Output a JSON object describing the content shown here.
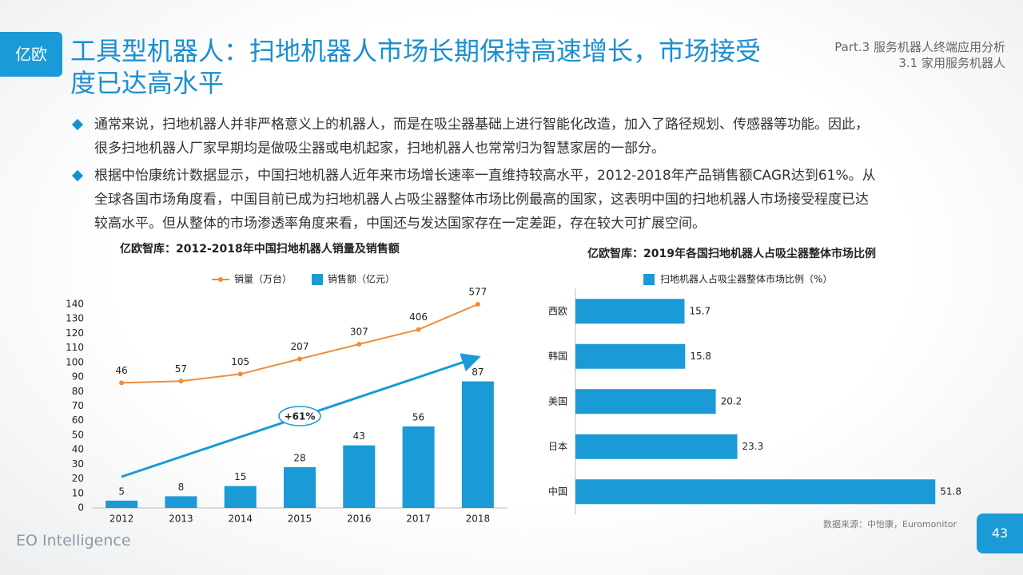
{
  "header": {
    "logo": "亿欧",
    "title": "工具型机器人：扫地机器人市场长期保持高速增长，市场接受度已达高水平",
    "part": "Part.3 服务机器人终端应用分析",
    "section": "3.1 家用服务机器人"
  },
  "bullets": [
    [
      "通常来说，扫地机器人并非严格意义上的机器人，而是在吸尘器基础上进行智能化改造，加入了路径规划、传感器等功能。因此，",
      "很多扫地机器人厂家早期均是做吸尘器或电机起家，扫地机器人也常常归为智慧家居的一部分。"
    ],
    [
      "根据中怡康统计数据显示，中国扫地机器人近年来市场增长速率一直维持较高水平，2012-2018年产品销售额CAGR达到61%。从",
      "全球各国市场角度看，中国目前已成为扫地机器人占吸尘器整体市场比例最高的国家，这表明中国的扫地机器人市场接受程度已达",
      "较高水平。但从整体的市场渗透率角度来看，中国还与发达国家存在一定差距，存在较大可扩展空间。"
    ]
  ],
  "chart_data": [
    {
      "type": "combo",
      "title": "亿欧智库：2012-2018年中国扫地机器人销量及销售额",
      "categories": [
        "2012",
        "2013",
        "2014",
        "2015",
        "2016",
        "2017",
        "2018"
      ],
      "series": [
        {
          "name": "销量（万台）",
          "type": "line",
          "axis": "y2",
          "color": "#ef8c3a",
          "values": [
            46,
            57,
            105,
            207,
            307,
            406,
            577
          ]
        },
        {
          "name": "销售额（亿元）",
          "type": "bar",
          "color": "#1a9ad6",
          "values": [
            5,
            8,
            15,
            28,
            43,
            56,
            87
          ]
        }
      ],
      "ylim": [
        0,
        140
      ],
      "yticks": [
        0,
        10,
        20,
        30,
        40,
        50,
        60,
        70,
        80,
        90,
        100,
        110,
        120,
        130,
        140
      ],
      "y2lim": [
        -800,
        577
      ],
      "annotation": "+61%"
    },
    {
      "type": "bar",
      "orientation": "horizontal",
      "title": "亿欧智库：2019年各国扫地机器人占吸尘器整体市场比例",
      "categories": [
        "西欧",
        "韩国",
        "美国",
        "日本",
        "中国"
      ],
      "series": [
        {
          "name": "扫地机器人占吸尘器整体市场比例（%）",
          "color": "#1a9ad6",
          "values": [
            15.7,
            15.8,
            20.2,
            23.3,
            51.8
          ]
        }
      ],
      "xlim": [
        0,
        52
      ]
    }
  ],
  "footer": {
    "brand": "EO Intelligence",
    "source": "数据来源：中怡康，Euromonitor",
    "page": "43"
  }
}
